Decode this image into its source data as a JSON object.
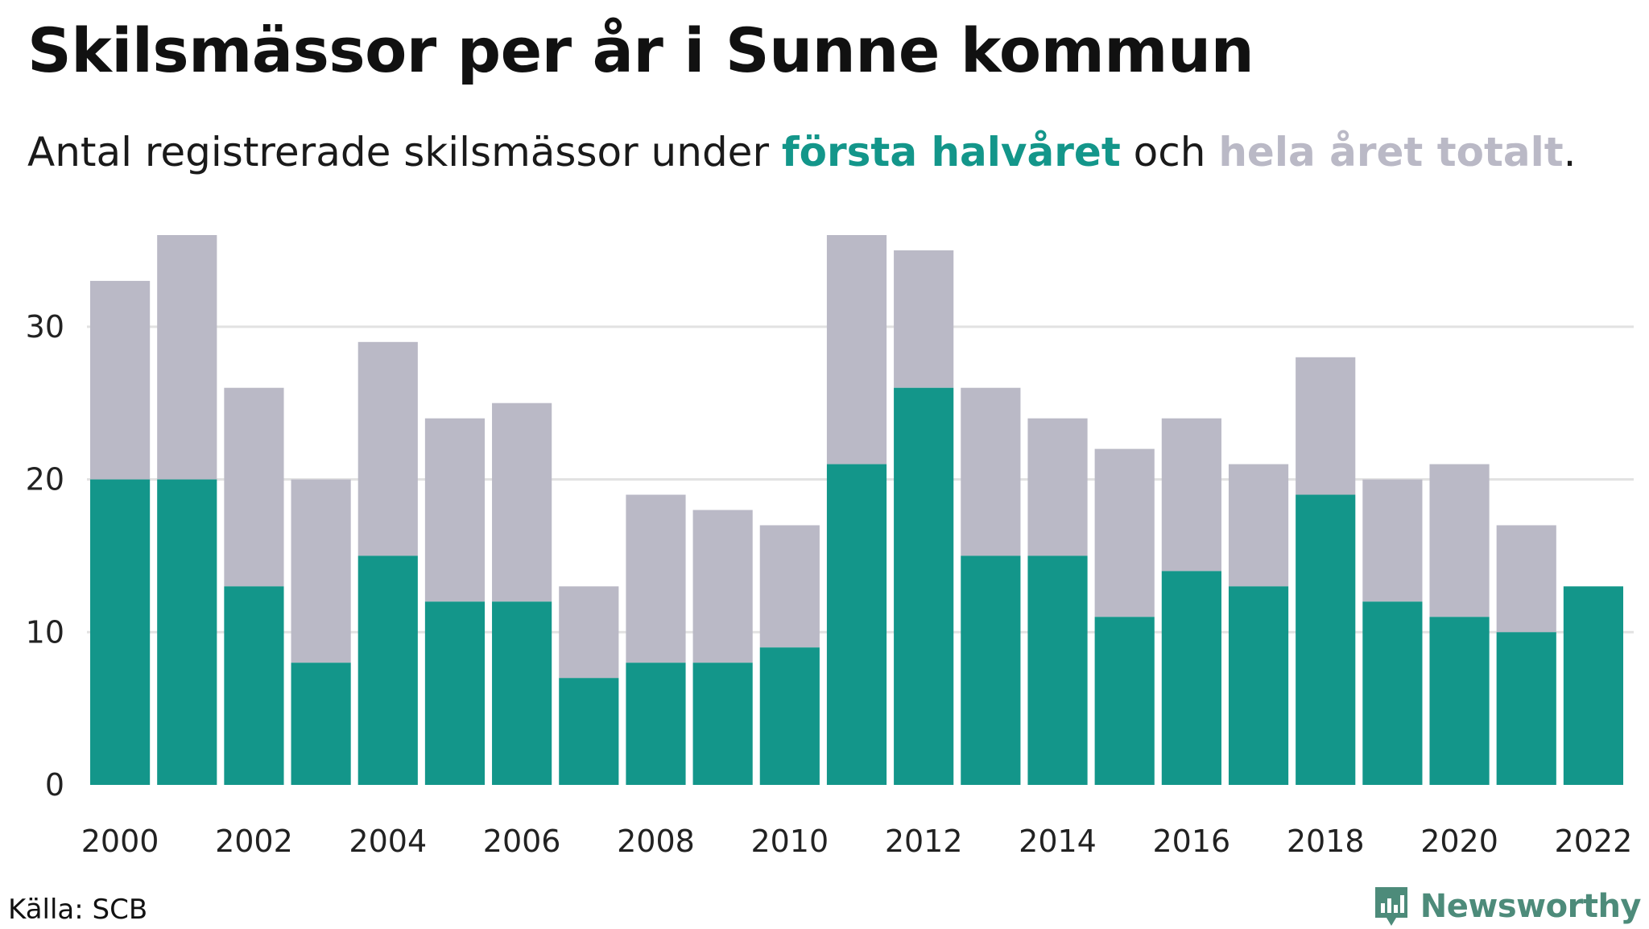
{
  "header": {
    "title": "Skilsmässor per år i Sunne kommun",
    "subtitle_pre": "Antal registrerade skilsmässor under ",
    "subtitle_hl1": "första halvåret",
    "subtitle_mid": " och ",
    "subtitle_hl2": "hela året totalt",
    "subtitle_post": "."
  },
  "footer": {
    "source": "Källa: SCB",
    "brand": "Newsworthy"
  },
  "colors": {
    "first_half": "#13968a",
    "total": "#bab9c6",
    "grid": "#e2e2e2",
    "brand": "#4d8b7a"
  },
  "chart_data": {
    "type": "bar",
    "categories": [
      2000,
      2001,
      2002,
      2003,
      2004,
      2005,
      2006,
      2007,
      2008,
      2009,
      2010,
      2011,
      2012,
      2013,
      2014,
      2015,
      2016,
      2017,
      2018,
      2019,
      2020,
      2021,
      2022
    ],
    "x_tick_labels": [
      "2000",
      "2002",
      "2004",
      "2006",
      "2008",
      "2010",
      "2012",
      "2014",
      "2016",
      "2018",
      "2020",
      "2022"
    ],
    "series": [
      {
        "name": "hela året totalt",
        "values": [
          33,
          36,
          26,
          20,
          29,
          24,
          25,
          13,
          19,
          18,
          17,
          36,
          35,
          26,
          24,
          22,
          24,
          21,
          28,
          20,
          21,
          17,
          null
        ]
      },
      {
        "name": "första halvåret",
        "values": [
          20,
          20,
          13,
          8,
          15,
          12,
          12,
          7,
          8,
          8,
          9,
          21,
          26,
          15,
          15,
          11,
          14,
          13,
          19,
          12,
          11,
          10,
          13
        ]
      }
    ],
    "y_ticks": [
      0,
      10,
      20,
      30
    ],
    "ylim": [
      0,
      36
    ],
    "grid": true,
    "legend": "in subtitle"
  }
}
